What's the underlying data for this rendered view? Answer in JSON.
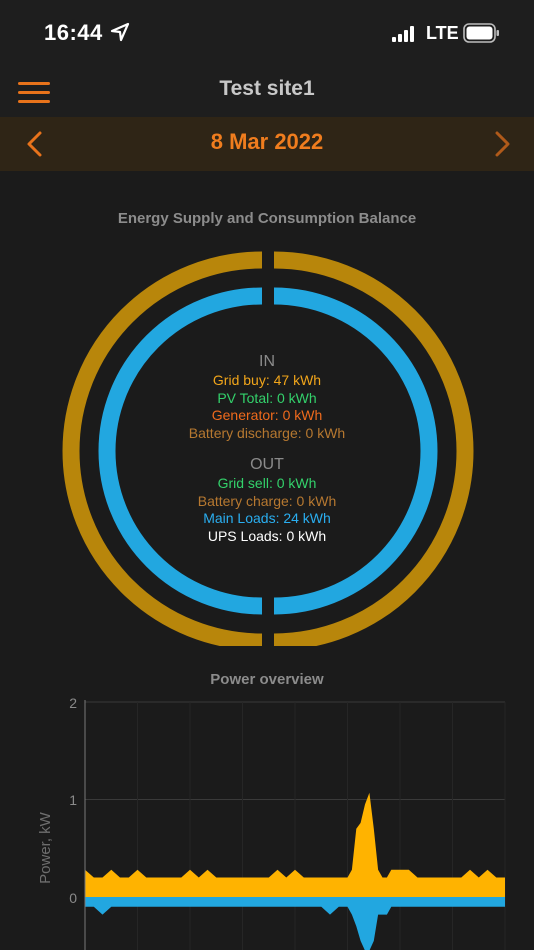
{
  "status_bar": {
    "time": "16:44",
    "network": "LTE"
  },
  "header": {
    "title": "Test site1"
  },
  "date_nav": {
    "date": "8 Mar 2022"
  },
  "balance": {
    "title": "Energy Supply and Consumption Balance",
    "in_heading": "IN",
    "in_items": [
      "Grid buy: 47 kWh",
      "PV Total: 0 kWh",
      "Generator: 0 kWh",
      "Battery discharge: 0 kWh"
    ],
    "out_heading": "OUT",
    "out_items": [
      "Grid sell: 0 kWh",
      "Battery charge: 0 kWh",
      "Main Loads: 24 kWh",
      "UPS Loads: 0 kWh"
    ]
  },
  "power_overview": {
    "title": "Power overview"
  },
  "colors": {
    "accent": "#e8731b",
    "supply_ring": "#b8860b",
    "consumption_ring": "#22a7e0",
    "grid_buy": "#f1a51a",
    "main_loads": "#2aaef0"
  },
  "chart_data": {
    "type": "area",
    "ylabel": "Power, kW",
    "yticks": [
      "2",
      "1",
      "0"
    ],
    "ylim": [
      -0.55,
      2
    ],
    "grid": true,
    "series": [
      {
        "color": "#ffb300",
        "x": [
          0.0,
          0.5,
          1.0,
          1.5,
          2.0,
          2.5,
          3.0,
          3.5,
          4.0,
          4.5,
          5.0,
          5.5,
          6.0,
          6.5,
          7.0,
          7.5,
          8.0,
          8.5,
          9.0,
          9.5,
          10.0,
          10.5,
          11.0,
          11.5,
          12.0,
          12.5,
          13.0,
          13.5,
          14.0,
          14.5,
          15.0,
          15.25,
          15.5,
          15.75,
          16.0,
          16.25,
          16.5,
          16.75,
          17.0,
          17.25,
          17.5,
          18.0,
          18.5,
          19.0,
          19.5,
          20.0,
          20.5,
          21.0,
          21.5,
          22.0,
          22.5,
          23.0,
          23.5,
          24.0
        ],
        "values": [
          0.28,
          0.2,
          0.2,
          0.28,
          0.2,
          0.2,
          0.28,
          0.2,
          0.2,
          0.2,
          0.2,
          0.2,
          0.28,
          0.2,
          0.28,
          0.2,
          0.2,
          0.2,
          0.2,
          0.2,
          0.2,
          0.2,
          0.28,
          0.2,
          0.28,
          0.2,
          0.2,
          0.2,
          0.2,
          0.2,
          0.2,
          0.28,
          0.7,
          0.76,
          0.95,
          1.07,
          0.7,
          0.28,
          0.2,
          0.2,
          0.28,
          0.28,
          0.28,
          0.2,
          0.2,
          0.2,
          0.2,
          0.2,
          0.2,
          0.28,
          0.2,
          0.28,
          0.2,
          0.2
        ]
      },
      {
        "color": "#22a7e0",
        "x": [
          0.0,
          0.5,
          1.0,
          1.5,
          2.0,
          2.5,
          3.0,
          3.5,
          4.0,
          4.5,
          5.0,
          5.5,
          6.0,
          6.5,
          7.0,
          7.5,
          8.0,
          8.5,
          9.0,
          9.5,
          10.0,
          10.5,
          11.0,
          11.5,
          12.0,
          12.5,
          13.0,
          13.5,
          14.0,
          14.5,
          15.0,
          15.25,
          15.5,
          15.75,
          16.0,
          16.25,
          16.5,
          16.75,
          17.0,
          17.25,
          17.5,
          18.0,
          18.5,
          19.0,
          19.5,
          20.0,
          20.5,
          21.0,
          21.5,
          22.0,
          22.5,
          23.0,
          23.5,
          24.0
        ],
        "values": [
          -0.1,
          -0.1,
          -0.18,
          -0.1,
          -0.1,
          -0.1,
          -0.1,
          -0.1,
          -0.1,
          -0.1,
          -0.1,
          -0.1,
          -0.1,
          -0.1,
          -0.1,
          -0.1,
          -0.1,
          -0.1,
          -0.1,
          -0.1,
          -0.1,
          -0.1,
          -0.1,
          -0.1,
          -0.1,
          -0.1,
          -0.1,
          -0.1,
          -0.18,
          -0.1,
          -0.1,
          -0.18,
          -0.3,
          -0.45,
          -0.55,
          -0.55,
          -0.45,
          -0.18,
          -0.18,
          -0.18,
          -0.1,
          -0.1,
          -0.1,
          -0.1,
          -0.1,
          -0.1,
          -0.1,
          -0.1,
          -0.1,
          -0.1,
          -0.1,
          -0.1,
          -0.1,
          -0.1
        ]
      }
    ]
  }
}
